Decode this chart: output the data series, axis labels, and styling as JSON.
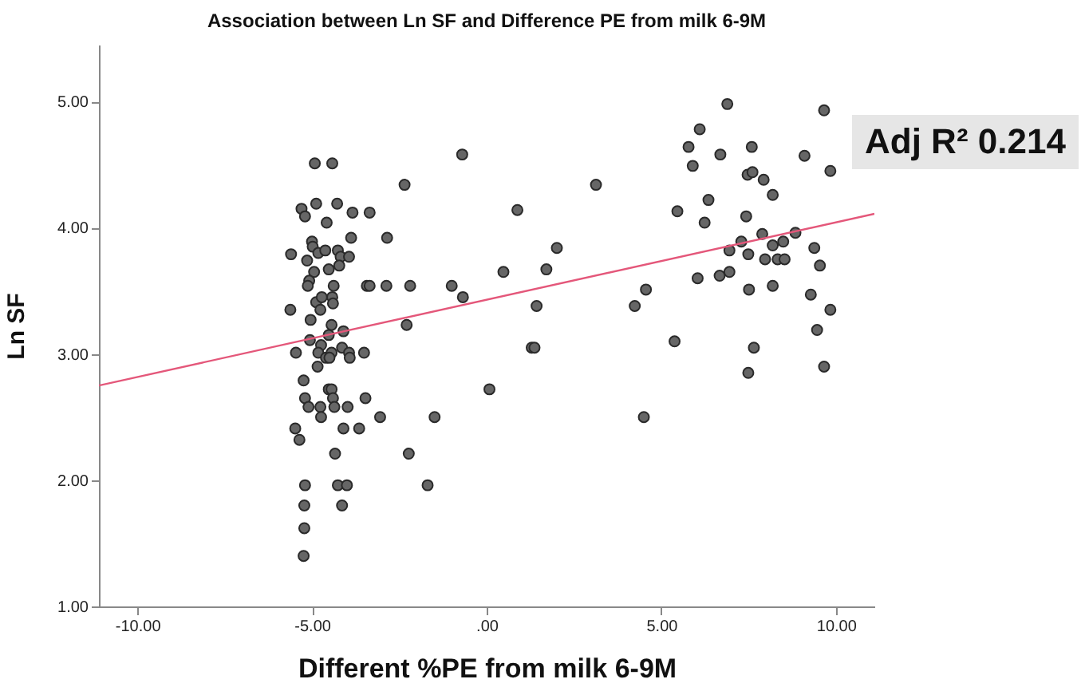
{
  "chart_data": {
    "type": "scatter",
    "title": "Association between Ln SF and Difference PE from milk 6-9M",
    "xlabel": "Different %PE from milk 6-9M",
    "ylabel": "Ln SF",
    "annotations": [
      "Adj R² 0.214"
    ],
    "xlim": [
      -11.1,
      11.1
    ],
    "ylim": [
      1,
      5.45
    ],
    "xticks": [
      {
        "value": -10,
        "label": "-10.00"
      },
      {
        "value": -5,
        "label": "-5.00"
      },
      {
        "value": 0,
        "label": ".00"
      },
      {
        "value": 5,
        "label": "5.00"
      },
      {
        "value": 10,
        "label": "10.00"
      }
    ],
    "yticks": [
      {
        "value": 1,
        "label": "1.00"
      },
      {
        "value": 2,
        "label": "2.00"
      },
      {
        "value": 3,
        "label": "3.00"
      },
      {
        "value": 4,
        "label": "4.00"
      },
      {
        "value": 5,
        "label": "5.00"
      }
    ],
    "series": [
      {
        "marker": "circle",
        "color": "#666666",
        "x": [
          -4.92,
          -4.42,
          -0.7,
          -2.35,
          3.13,
          0.88,
          -5.3,
          -5.2,
          -4.88,
          -4.28,
          -4.58,
          -3.84,
          -3.35,
          -5.6,
          -5.0,
          -4.98,
          -5.14,
          -4.82,
          -4.62,
          -4.26,
          -4.18,
          -3.94,
          -3.88,
          -2.85,
          -4.94,
          -5.08,
          -5.12,
          -4.52,
          -4.22,
          -4.38,
          -3.43,
          -3.35,
          -2.87,
          -2.19,
          -1.0,
          -0.68,
          0.48,
          1.71,
          2.01,
          -5.62,
          -4.88,
          -4.72,
          -4.76,
          -4.42,
          -4.4,
          -5.04,
          -4.44,
          -4.1,
          -4.52,
          -5.06,
          -4.74,
          -5.46,
          -4.82,
          -4.6,
          -4.44,
          -4.14,
          -3.94,
          -3.92,
          -4.5,
          -3.51,
          -4.84,
          -2.29,
          1.43,
          1.29,
          1.37,
          0.08,
          -5.24,
          -5.2,
          -5.1,
          -4.52,
          -4.44,
          -4.4,
          -4.76,
          -4.36,
          -3.98,
          -3.47,
          -4.74,
          -3.05,
          -1.49,
          -5.48,
          -5.36,
          -4.1,
          -3.65,
          -4.34,
          -2.23,
          -5.2,
          -4.26,
          -4.0,
          -1.69,
          -5.22,
          -4.14,
          -5.22,
          -5.24,
          4.5,
          4.24,
          4.56,
          5.38,
          5.46,
          5.78,
          5.9,
          6.1,
          6.35,
          6.24,
          6.04,
          6.69,
          6.89,
          6.67,
          6.95,
          6.95,
          7.29,
          7.43,
          7.59,
          7.47,
          7.61,
          7.93,
          8.19,
          7.49,
          7.89,
          7.97,
          8.19,
          8.33,
          8.49,
          8.53,
          8.19,
          7.51,
          8.84,
          9.1,
          9.66,
          9.84,
          9.38,
          9.54,
          9.28,
          9.84,
          9.46,
          7.65,
          7.49,
          9.66
        ],
        "values": [
          4.51,
          4.51,
          4.58,
          4.34,
          4.34,
          4.14,
          4.15,
          4.09,
          4.19,
          4.19,
          4.04,
          4.12,
          4.12,
          3.79,
          3.89,
          3.85,
          3.74,
          3.8,
          3.82,
          3.82,
          3.77,
          3.77,
          3.92,
          3.92,
          3.65,
          3.58,
          3.54,
          3.67,
          3.7,
          3.54,
          3.54,
          3.54,
          3.54,
          3.54,
          3.54,
          3.45,
          3.65,
          3.67,
          3.84,
          3.35,
          3.41,
          3.45,
          3.35,
          3.45,
          3.4,
          3.27,
          3.23,
          3.18,
          3.15,
          3.11,
          3.07,
          3.01,
          3.01,
          2.97,
          3.01,
          3.05,
          3.01,
          2.97,
          2.97,
          3.01,
          2.9,
          3.23,
          3.38,
          3.05,
          3.05,
          2.72,
          2.79,
          2.65,
          2.58,
          2.72,
          2.72,
          2.65,
          2.58,
          2.58,
          2.58,
          2.65,
          2.5,
          2.5,
          2.5,
          2.41,
          2.32,
          2.41,
          2.41,
          2.21,
          2.21,
          1.96,
          1.96,
          1.96,
          1.96,
          1.8,
          1.8,
          1.62,
          1.4,
          2.5,
          3.38,
          3.51,
          3.1,
          4.13,
          4.64,
          4.49,
          4.78,
          4.22,
          4.04,
          3.6,
          4.58,
          4.98,
          3.62,
          3.65,
          3.82,
          3.89,
          4.09,
          4.64,
          4.42,
          4.44,
          4.38,
          4.26,
          3.79,
          3.95,
          3.75,
          3.86,
          3.75,
          3.89,
          3.75,
          3.54,
          3.51,
          3.96,
          4.57,
          4.93,
          4.45,
          3.84,
          3.7,
          3.47,
          3.35,
          3.19,
          3.05,
          2.85,
          2.9
        ]
      },
      {
        "type": "line",
        "color": "#e4577a",
        "x": [
          -11.1,
          11.1
        ],
        "values": [
          2.75,
          4.11
        ]
      }
    ]
  }
}
